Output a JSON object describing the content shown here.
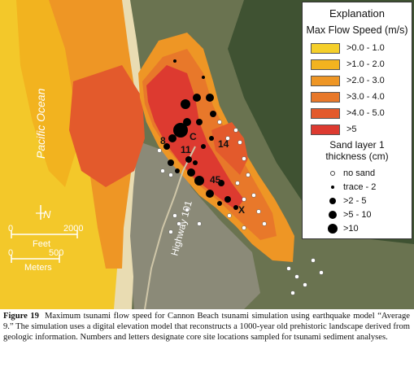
{
  "map": {
    "ocean_label": "Pacific Ocean",
    "highway_label": "Highway 101",
    "north_label": "N",
    "site_labels": [
      "C",
      "8",
      "11",
      "14",
      "45",
      "X"
    ]
  },
  "scale_feet": {
    "zero": "0",
    "max": "2000",
    "unit": "Feet"
  },
  "scale_meters": {
    "zero": "0",
    "max": "500",
    "unit": "Meters"
  },
  "legend": {
    "title": "Explanation",
    "flow_title": "Max Flow Speed (m/s)",
    "flow_classes": [
      {
        "label": ">0.0 - 1.0",
        "color": "#f5cf2a"
      },
      {
        "label": ">1.0 - 2.0",
        "color": "#f2b31f"
      },
      {
        "label": ">2.0 - 3.0",
        "color": "#ee9625"
      },
      {
        "label": ">3.0 - 4.0",
        "color": "#e8782a"
      },
      {
        "label": ">4.0 - 5.0",
        "color": "#e35a2c"
      },
      {
        "label": ">5",
        "color": "#dd3a30"
      }
    ],
    "sand_title_line1": "Sand layer 1",
    "sand_title_line2": "thickness (cm)",
    "sand_classes": [
      {
        "label": "no sand"
      },
      {
        "label": "trace - 2"
      },
      {
        "label": ">2 - 5"
      },
      {
        "label": ">5 - 10"
      },
      {
        "label": ">10"
      }
    ]
  },
  "caption": {
    "figure_label": "Figure 19",
    "text": "Maximum tsunami flow speed for Cannon Beach tsunami simulation using earthquake model “Average 9.” The simulation uses a digital elevation model that reconstructs a 1000-year old prehistoric landscape derived from geologic information. Numbers and letters designate core site locations sampled for tsunami sediment analyses."
  }
}
